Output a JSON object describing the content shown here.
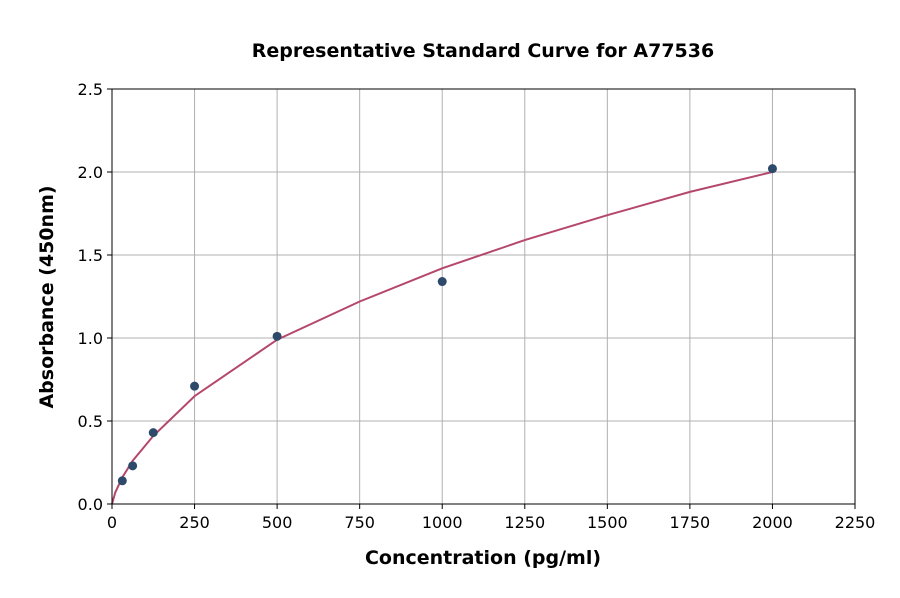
{
  "chart_data": {
    "type": "scatter",
    "title": "Representative Standard Curve for A77536",
    "xlabel": "Concentration (pg/ml)",
    "ylabel": "Absorbance (450nm)",
    "xlim": [
      0,
      2250
    ],
    "ylim": [
      0,
      2.5
    ],
    "xticks": [
      0,
      250,
      500,
      750,
      1000,
      1250,
      1500,
      1750,
      2000,
      2250
    ],
    "yticks": [
      "0.0",
      "0.5",
      "1.0",
      "1.5",
      "2.0",
      "2.5"
    ],
    "grid": true,
    "points": {
      "x": [
        31.25,
        62.5,
        125,
        250,
        500,
        1000,
        2000
      ],
      "y": [
        0.14,
        0.23,
        0.43,
        0.71,
        1.01,
        1.34,
        2.02
      ],
      "color": "#2d4a6b"
    },
    "fit_curve": {
      "x": [
        0,
        10,
        31.25,
        62.5,
        125,
        250,
        500,
        750,
        1000,
        1250,
        1500,
        1750,
        2000
      ],
      "y": [
        0,
        0.07,
        0.16,
        0.26,
        0.41,
        0.65,
        0.99,
        1.22,
        1.42,
        1.59,
        1.74,
        1.88,
        2.0
      ],
      "color": "#b5476b"
    }
  }
}
